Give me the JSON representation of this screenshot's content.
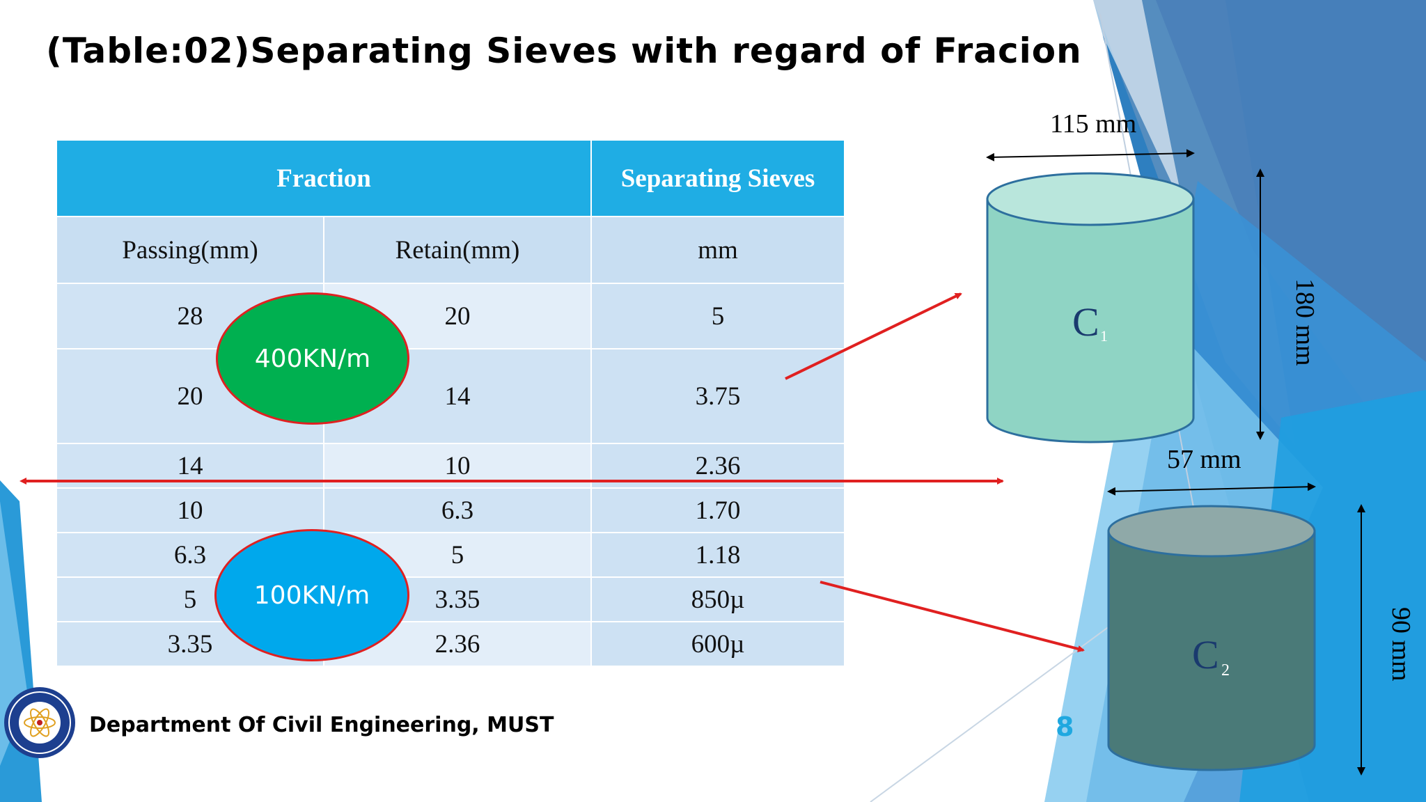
{
  "title": "(Table:02)Separating Sieves with regard of Fracion",
  "table": {
    "header_fraction": "Fraction",
    "header_sieves": "Separating Sieves",
    "sub_passing": "Passing(mm)",
    "sub_retain": "Retain(mm)",
    "sub_unit": "mm",
    "rows": [
      {
        "passing": "28",
        "retain": "20",
        "sieve": "5"
      },
      {
        "passing": "20",
        "retain": "14",
        "sieve": "3.75"
      },
      {
        "passing": "14",
        "retain": "10",
        "sieve": "2.36"
      },
      {
        "passing": "10",
        "retain": "6.3",
        "sieve": "1.70"
      },
      {
        "passing": "6.3",
        "retain": "5",
        "sieve": "1.18"
      },
      {
        "passing": "5",
        "retain": "3.35",
        "sieve": "850µ"
      },
      {
        "passing": "3.35",
        "retain": "2.36",
        "sieve": "600µ"
      }
    ]
  },
  "ovals": {
    "large": "400KN/m",
    "small": "100KN/m"
  },
  "cylinders": {
    "c1": {
      "letter": "C",
      "sub": "1",
      "width_label": "115 mm",
      "height_label": "180 mm",
      "color": "#8fd4c4"
    },
    "c2": {
      "letter": "C",
      "sub": "2",
      "width_label": "57 mm",
      "height_label": "90 mm",
      "color": "#4a7a78"
    }
  },
  "footer": {
    "department": "Department Of Civil Engineering, MUST",
    "page": "8"
  },
  "colors": {
    "header_blue": "#1fade4",
    "accent_red": "#e02020",
    "oval_green": "#00b050",
    "oval_blue": "#00a8ec"
  }
}
